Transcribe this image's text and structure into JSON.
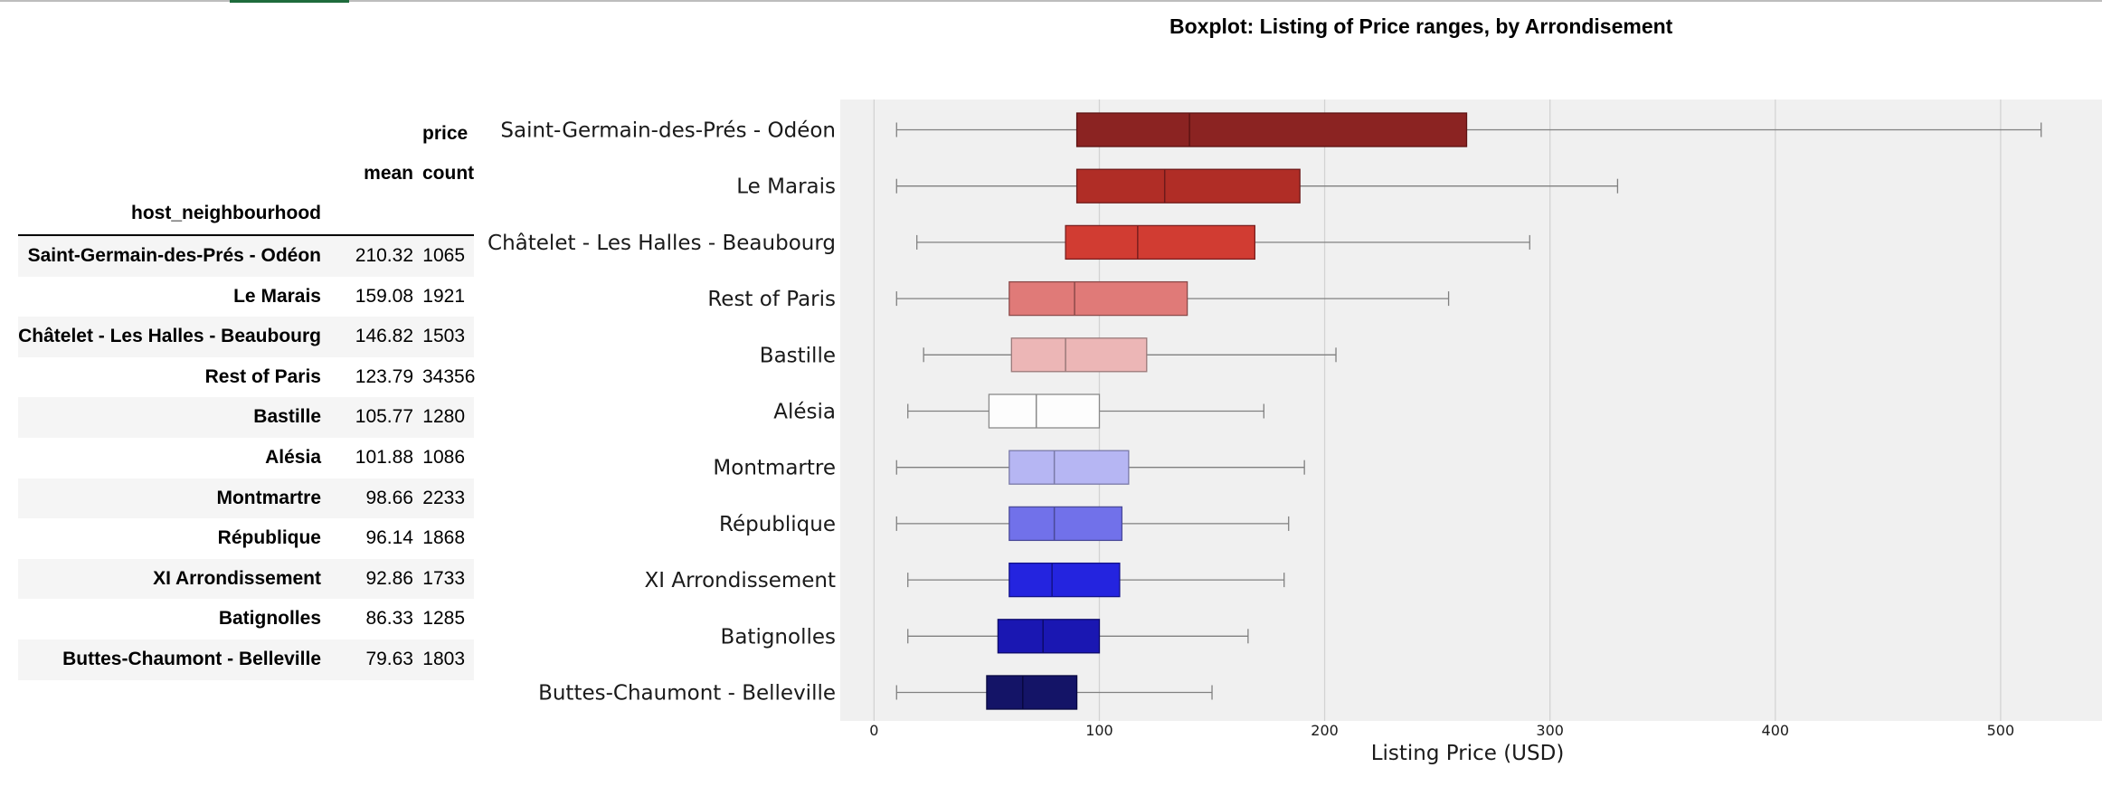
{
  "table": {
    "top_header": "price",
    "col_mean": "mean",
    "col_count": "count",
    "index_name": "host_neighbourhood",
    "rows": [
      {
        "name": "Saint-Germain-des-Prés - Odéon",
        "mean": "210.32",
        "count": "1065"
      },
      {
        "name": "Le Marais",
        "mean": "159.08",
        "count": "1921"
      },
      {
        "name": "Châtelet - Les Halles - Beaubourg",
        "mean": "146.82",
        "count": "1503"
      },
      {
        "name": "Rest of Paris",
        "mean": "123.79",
        "count": "34356"
      },
      {
        "name": "Bastille",
        "mean": "105.77",
        "count": "1280"
      },
      {
        "name": "Alésia",
        "mean": "101.88",
        "count": "1086"
      },
      {
        "name": "Montmartre",
        "mean": "98.66",
        "count": "2233"
      },
      {
        "name": "République",
        "mean": "96.14",
        "count": "1868"
      },
      {
        "name": "XI Arrondissement",
        "mean": "92.86",
        "count": "1733"
      },
      {
        "name": "Batignolles",
        "mean": "86.33",
        "count": "1285"
      },
      {
        "name": "Buttes-Chaumont - Belleville",
        "mean": "79.63",
        "count": "1803"
      }
    ]
  },
  "chart_data": {
    "type": "boxplot",
    "title": "Boxplot: Listing of Price ranges, by Arrondisement",
    "xlabel": "Listing Price (USD)",
    "ylabel": "",
    "xlim": [
      -15,
      545
    ],
    "xticks": [
      0,
      100,
      200,
      300,
      400,
      500
    ],
    "orientation": "horizontal",
    "grid": "vertical",
    "categories": [
      "Saint-Germain-des-Prés - Odéon",
      "Le Marais",
      "Châtelet - Les Halles - Beaubourg",
      "Rest of Paris",
      "Bastille",
      "Alésia",
      "Montmartre",
      "République",
      "XI Arrondissement",
      "Batignolles",
      "Buttes-Chaumont - Belleville"
    ],
    "boxes": [
      {
        "whislo": 10,
        "q1": 90,
        "med": 140,
        "q3": 263,
        "whishi": 518
      },
      {
        "whislo": 10,
        "q1": 90,
        "med": 129,
        "q3": 189,
        "whishi": 330
      },
      {
        "whislo": 19,
        "q1": 85,
        "med": 117,
        "q3": 169,
        "whishi": 291
      },
      {
        "whislo": 10,
        "q1": 60,
        "med": 89,
        "q3": 139,
        "whishi": 255
      },
      {
        "whislo": 22,
        "q1": 61,
        "med": 85,
        "q3": 121,
        "whishi": 205
      },
      {
        "whislo": 15,
        "q1": 51,
        "med": 72,
        "q3": 100,
        "whishi": 173
      },
      {
        "whislo": 10,
        "q1": 60,
        "med": 80,
        "q3": 113,
        "whishi": 191
      },
      {
        "whislo": 10,
        "q1": 60,
        "med": 80,
        "q3": 110,
        "whishi": 184
      },
      {
        "whislo": 15,
        "q1": 60,
        "med": 79,
        "q3": 109,
        "whishi": 182
      },
      {
        "whislo": 15,
        "q1": 55,
        "med": 75,
        "q3": 100,
        "whishi": 166
      },
      {
        "whislo": 10,
        "q1": 50,
        "med": 66,
        "q3": 90,
        "whishi": 150
      }
    ],
    "colors": [
      "#8b2322",
      "#b02d26",
      "#d13c32",
      "#e07a78",
      "#ecb6b6",
      "#fdfdfd",
      "#b6b6f3",
      "#7171ea",
      "#2424df",
      "#1a17b2",
      "#141467"
    ],
    "edge_colors": [
      "#5e1212",
      "#6e1a1a",
      "#7a1f1f",
      "#8c4a4a",
      "#9a7a7a",
      "#8a8a8a",
      "#7a7aa8",
      "#4a4a98",
      "#12128a",
      "#0d0b6a",
      "#080840"
    ],
    "background": "#f0f0f0",
    "grid_color": "#d3d3d3",
    "whisker_color": "#808080"
  }
}
